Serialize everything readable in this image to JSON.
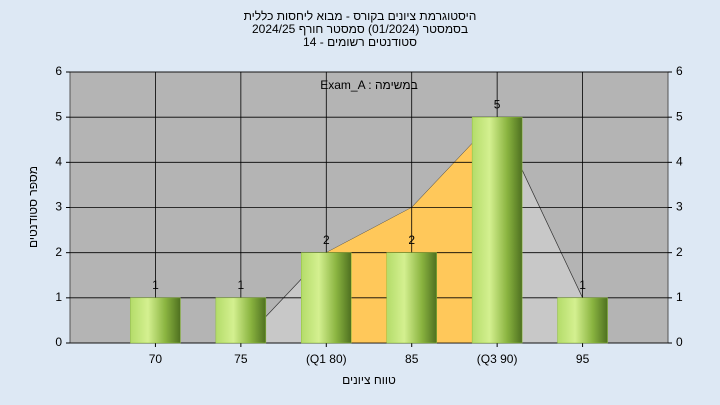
{
  "chart_data": {
    "type": "bar",
    "title": [
      "היסטוגרמת ציונים בקורס - מבוא ליחסות כללית",
      "בסמסטר  (01/2024)  סמסטר חורף 2024/25",
      "סטודנטים רשומים - 14"
    ],
    "annotation": "Exam_A : במשימה",
    "xlabel": "טווח ציונים",
    "ylabel": "מספר סטודנטים",
    "categories": [
      "70",
      "75",
      "(Q1 80)",
      "85",
      "(Q3 90)",
      "95"
    ],
    "values": [
      1,
      1,
      2,
      2,
      5,
      1
    ],
    "color": "#8fbf3a",
    "areas": [
      {
        "color": "#c8c8c8",
        "values": [
          null,
          0,
          2,
          3,
          5,
          1
        ]
      },
      {
        "color": "#ffc85a",
        "values": [
          null,
          null,
          2,
          3,
          5,
          null
        ]
      }
    ],
    "ylim": [
      0,
      6
    ],
    "yticks": [
      0,
      1,
      2,
      3,
      4,
      5,
      6
    ],
    "y2lim": [
      0,
      6
    ],
    "y2ticks": [
      0,
      1,
      2,
      3,
      4,
      5,
      6
    ],
    "grid": true
  }
}
